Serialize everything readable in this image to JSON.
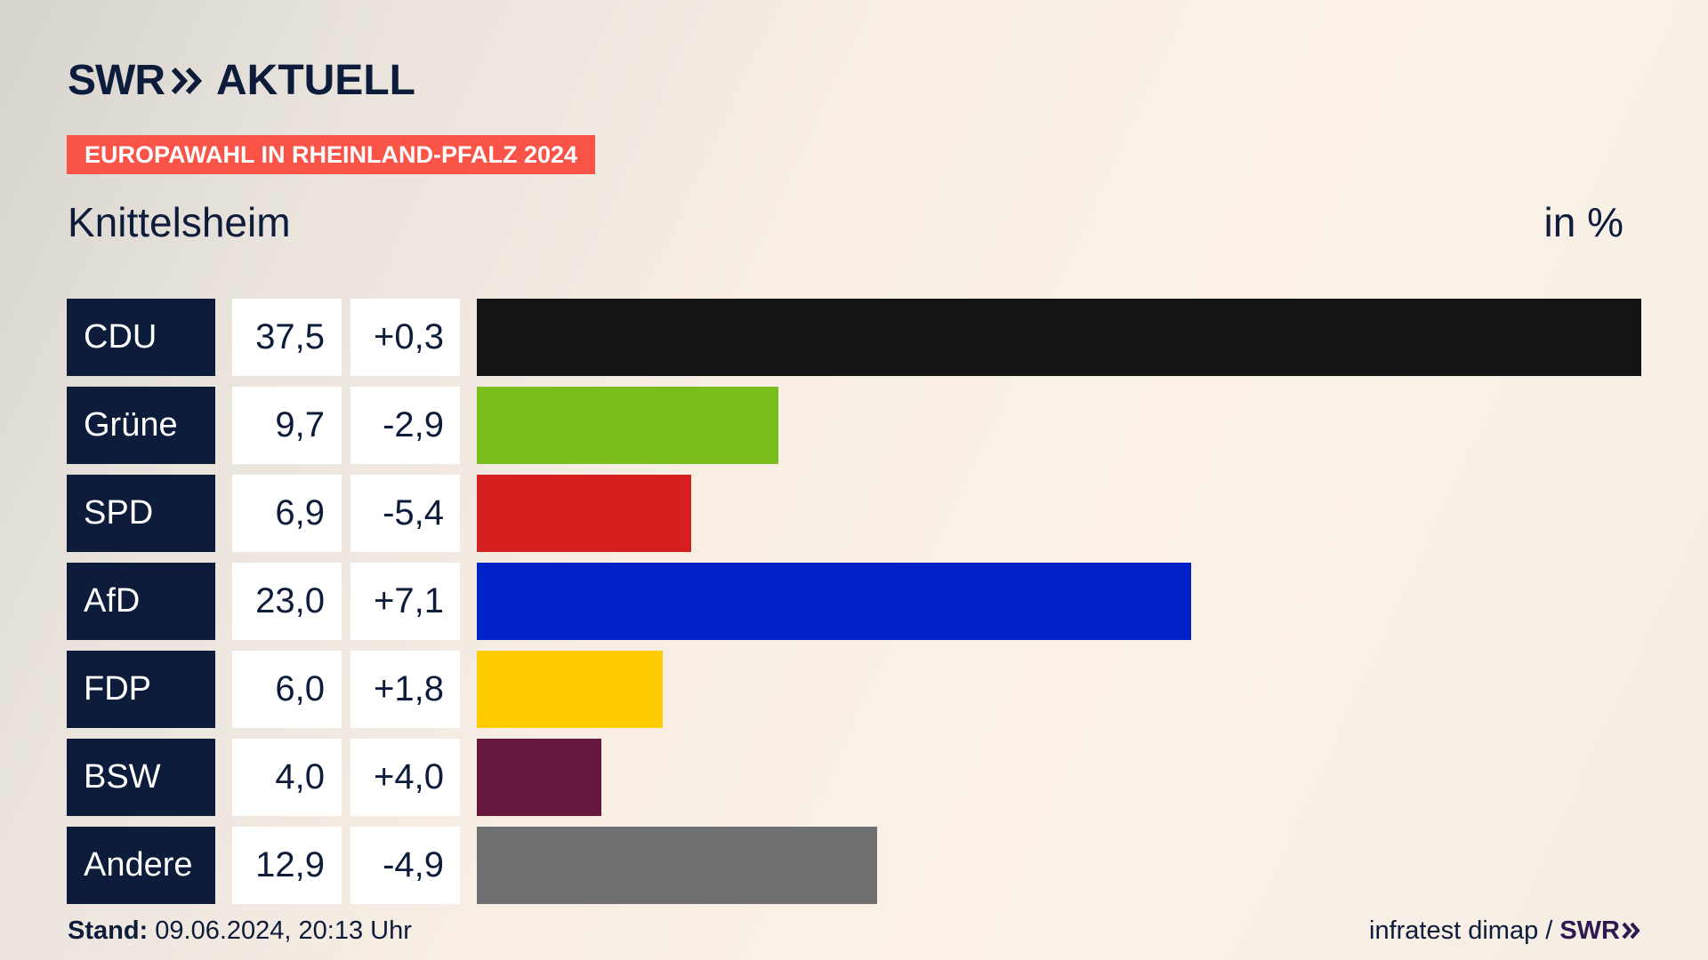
{
  "header": {
    "brand": "SWR",
    "brand_icon": "double-chevron-right-icon",
    "section": "AKTUELL",
    "badge": "EUROPAWAHL IN RHEINLAND-PFALZ 2024",
    "badge_color": "#f95447",
    "place": "Knittelsheim",
    "unit": "in %"
  },
  "chart_data": {
    "type": "bar",
    "orientation": "horizontal",
    "categories": [
      "CDU",
      "Grüne",
      "SPD",
      "AfD",
      "FDP",
      "BSW",
      "Andere"
    ],
    "values": [
      37.5,
      9.7,
      6.9,
      23.0,
      6.0,
      4.0,
      12.9
    ],
    "value_labels": [
      "37,5",
      "9,7",
      "6,9",
      "23,0",
      "6,0",
      "4,0",
      "12,9"
    ],
    "diffs": [
      0.3,
      -2.9,
      -5.4,
      7.1,
      1.8,
      4.0,
      -4.9
    ],
    "diff_labels": [
      "+0,3",
      "-2,9",
      "-5,4",
      "+7,1",
      "+1,8",
      "+4,0",
      "-4,9"
    ],
    "colors": [
      "#141414",
      "#7abe1e",
      "#d62020",
      "#0020c8",
      "#ffcc00",
      "#66183f",
      "#6f7071"
    ],
    "xlim": [
      0,
      37.5
    ],
    "grid": false,
    "legend": "none"
  },
  "footer": {
    "stand_label": "Stand:",
    "stand_value": "09.06.2024, 20:13 Uhr",
    "source": "infratest dimap /",
    "source_brand": "SWR",
    "source_brand_color": "#2a1b50"
  }
}
